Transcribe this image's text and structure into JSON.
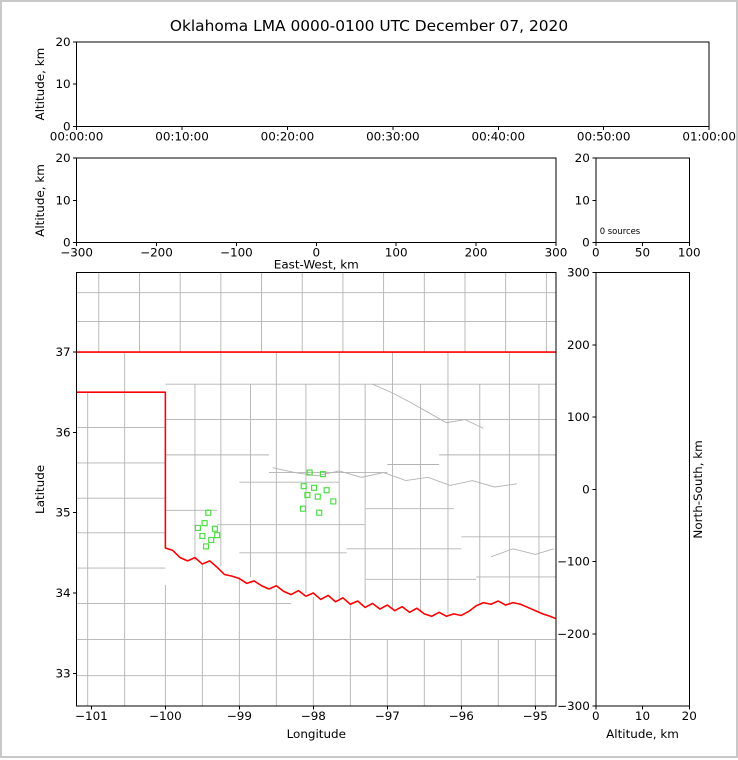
{
  "title": "Oklahoma LMA 0000-0100 UTC December 07, 2020",
  "colors": {
    "background": "#ffffff",
    "frame_border": "#c8c8c8",
    "axis": "#000000",
    "county_line": "#b3b3b3",
    "state_border": "#ff0000",
    "station_stroke": "#4fdd44",
    "text": "#000000"
  },
  "chart_data": [
    {
      "type": "scatter",
      "name": "time-height",
      "title": "",
      "xlabel": "",
      "ylabel": "Altitude, km",
      "xlim": [
        0,
        3600
      ],
      "xticks": [
        0,
        600,
        1200,
        1800,
        2400,
        3000,
        3600
      ],
      "xtick_labels": [
        "00:00:00",
        "00:10:00",
        "00:20:00",
        "00:30:00",
        "00:40:00",
        "00:50:00",
        "01:00:00"
      ],
      "ylim": [
        0,
        20
      ],
      "yticks": [
        0,
        10,
        20
      ],
      "points": []
    },
    {
      "type": "scatter",
      "name": "ew-height",
      "xlabel": "East-West, km",
      "ylabel": "Altitude, km",
      "xlim": [
        -300,
        300
      ],
      "xticks": [
        -300,
        -200,
        -100,
        0,
        100,
        200,
        300
      ],
      "ylim": [
        0,
        20
      ],
      "yticks": [
        0,
        10,
        20
      ],
      "points": []
    },
    {
      "type": "histogram",
      "name": "source-histogram",
      "annotation": "0 sources",
      "xlim": [
        0,
        100
      ],
      "xticks": [
        0,
        50,
        100
      ],
      "ylim": [
        0,
        20
      ],
      "yticks": [
        0,
        10,
        20
      ],
      "values": []
    },
    {
      "type": "map-scatter",
      "name": "plan-view",
      "xlabel": "Longitude",
      "ylabel": "Latitude",
      "xlim": [
        -101.2,
        -94.72
      ],
      "xticks": [
        -101,
        -100,
        -99,
        -98,
        -97,
        -96,
        -95
      ],
      "ylim": [
        32.59,
        37.99
      ],
      "yticks": [
        33,
        34,
        35,
        36,
        37
      ],
      "points": [],
      "stations": [
        [
          -98.05,
          35.5
        ],
        [
          -97.87,
          35.48
        ],
        [
          -98.13,
          35.33
        ],
        [
          -97.99,
          35.31
        ],
        [
          -97.82,
          35.28
        ],
        [
          -98.08,
          35.22
        ],
        [
          -97.94,
          35.2
        ],
        [
          -97.73,
          35.14
        ],
        [
          -98.14,
          35.05
        ],
        [
          -97.92,
          35.0
        ],
        [
          -99.42,
          35.0
        ],
        [
          -99.47,
          34.87
        ],
        [
          -99.56,
          34.81
        ],
        [
          -99.33,
          34.8
        ],
        [
          -99.5,
          34.71
        ],
        [
          -99.3,
          34.72
        ],
        [
          -99.38,
          34.66
        ],
        [
          -99.45,
          34.58
        ]
      ]
    },
    {
      "type": "scatter",
      "name": "height-ns",
      "xlabel": "Altitude, km",
      "ylabel": "North-South, km",
      "ylabel_side": "right",
      "xlim": [
        0,
        20
      ],
      "xticks": [
        0,
        10,
        20
      ],
      "ylim": [
        -300,
        300
      ],
      "yticks": [
        -300,
        -200,
        -100,
        0,
        100,
        200,
        300
      ],
      "points": []
    }
  ],
  "map": {
    "state_outline": [
      [
        [
          -101.2,
          37.0
        ],
        [
          -94.72,
          37.0
        ]
      ],
      [
        [
          -101.2,
          36.5
        ],
        [
          -100.0,
          36.5
        ],
        [
          -100.0,
          34.56
        ],
        [
          -99.9,
          34.53
        ],
        [
          -99.8,
          34.44
        ],
        [
          -99.7,
          34.4
        ],
        [
          -99.6,
          34.44
        ],
        [
          -99.5,
          34.36
        ],
        [
          -99.4,
          34.4
        ],
        [
          -99.3,
          34.32
        ],
        [
          -99.2,
          34.23
        ],
        [
          -99.1,
          34.21
        ],
        [
          -99.0,
          34.18
        ],
        [
          -98.9,
          34.12
        ],
        [
          -98.8,
          34.15
        ],
        [
          -98.7,
          34.09
        ],
        [
          -98.6,
          34.05
        ],
        [
          -98.5,
          34.09
        ],
        [
          -98.4,
          34.02
        ],
        [
          -98.3,
          33.98
        ],
        [
          -98.2,
          34.03
        ],
        [
          -98.1,
          33.96
        ],
        [
          -98.0,
          34.0
        ],
        [
          -97.9,
          33.92
        ],
        [
          -97.8,
          33.97
        ],
        [
          -97.7,
          33.89
        ],
        [
          -97.6,
          33.94
        ],
        [
          -97.5,
          33.86
        ],
        [
          -97.4,
          33.9
        ],
        [
          -97.3,
          33.82
        ],
        [
          -97.2,
          33.87
        ],
        [
          -97.1,
          33.8
        ],
        [
          -97.0,
          33.85
        ],
        [
          -96.9,
          33.78
        ],
        [
          -96.8,
          33.83
        ],
        [
          -96.7,
          33.76
        ],
        [
          -96.6,
          33.81
        ],
        [
          -96.5,
          33.74
        ],
        [
          -96.4,
          33.71
        ],
        [
          -96.3,
          33.76
        ],
        [
          -96.2,
          33.71
        ],
        [
          -96.1,
          33.74
        ],
        [
          -96.0,
          33.72
        ],
        [
          -95.9,
          33.77
        ],
        [
          -95.8,
          33.84
        ],
        [
          -95.7,
          33.88
        ],
        [
          -95.6,
          33.86
        ],
        [
          -95.5,
          33.9
        ],
        [
          -95.4,
          33.85
        ],
        [
          -95.3,
          33.88
        ],
        [
          -95.2,
          33.86
        ],
        [
          -95.1,
          33.82
        ],
        [
          -95.0,
          33.78
        ],
        [
          -94.9,
          33.74
        ],
        [
          -94.8,
          33.71
        ],
        [
          -94.72,
          33.68
        ]
      ]
    ],
    "counties": {
      "h": [
        [
          37.74,
          -101.2,
          -94.72
        ],
        [
          37.38,
          -101.2,
          -94.72
        ],
        [
          36.6,
          -100.0,
          -94.72
        ],
        [
          36.16,
          -100.0,
          -94.72
        ],
        [
          35.72,
          -100.0,
          -98.6
        ],
        [
          35.72,
          -96.3,
          -94.72
        ],
        [
          35.5,
          -98.6,
          -97.0
        ],
        [
          35.6,
          -97.0,
          -96.3
        ],
        [
          35.38,
          -99.0,
          -97.65
        ],
        [
          35.03,
          -100.0,
          -99.3
        ],
        [
          34.85,
          -99.3,
          -97.3
        ],
        [
          35.05,
          -97.3,
          -96.1
        ],
        [
          34.5,
          -99.0,
          -97.55
        ],
        [
          34.55,
          -97.55,
          -96.0
        ],
        [
          34.7,
          -96.0,
          -94.72
        ],
        [
          34.17,
          -97.3,
          -95.8
        ],
        [
          34.2,
          -95.8,
          -94.72
        ],
        [
          36.06,
          -101.2,
          -100.0
        ],
        [
          35.62,
          -101.2,
          -100.0
        ],
        [
          35.18,
          -101.2,
          -100.0
        ],
        [
          34.75,
          -101.2,
          -100.0
        ],
        [
          34.31,
          -101.2,
          -100.0
        ],
        [
          33.87,
          -101.2,
          -100.0
        ],
        [
          33.87,
          -100.0,
          -98.3
        ],
        [
          33.42,
          -101.2,
          -94.72
        ],
        [
          32.97,
          -101.2,
          -94.72
        ]
      ],
      "v": [
        [
          -100.9,
          37.0,
          37.99
        ],
        [
          -100.35,
          37.0,
          37.99
        ],
        [
          -99.8,
          37.0,
          37.99
        ],
        [
          -99.25,
          37.0,
          37.99
        ],
        [
          -98.7,
          37.0,
          37.99
        ],
        [
          -98.15,
          37.0,
          37.99
        ],
        [
          -97.6,
          37.0,
          37.99
        ],
        [
          -97.05,
          37.0,
          37.99
        ],
        [
          -96.5,
          37.0,
          37.99
        ],
        [
          -95.95,
          37.0,
          37.99
        ],
        [
          -95.4,
          37.0,
          37.99
        ],
        [
          -94.85,
          37.0,
          37.99
        ],
        [
          -100.55,
          32.59,
          37.0
        ],
        [
          -101.05,
          32.59,
          36.5
        ],
        [
          -99.6,
          34.4,
          36.6
        ],
        [
          -99.25,
          34.33,
          37.0
        ],
        [
          -98.85,
          34.2,
          36.6
        ],
        [
          -98.5,
          34.1,
          37.0
        ],
        [
          -98.1,
          34.0,
          36.6
        ],
        [
          -97.65,
          33.9,
          37.0
        ],
        [
          -97.3,
          33.88,
          36.6
        ],
        [
          -96.93,
          33.8,
          37.0
        ],
        [
          -96.55,
          33.76,
          36.6
        ],
        [
          -96.18,
          33.73,
          37.0
        ],
        [
          -95.75,
          33.87,
          36.6
        ],
        [
          -95.35,
          33.86,
          37.0
        ],
        [
          -94.95,
          33.75,
          36.6
        ],
        [
          -100.0,
          32.59,
          34.1
        ],
        [
          -99.5,
          32.59,
          34.35
        ],
        [
          -99.0,
          32.59,
          34.2
        ],
        [
          -98.5,
          32.59,
          34.05
        ],
        [
          -98.0,
          32.59,
          33.95
        ],
        [
          -97.5,
          32.59,
          33.85
        ],
        [
          -97.0,
          32.59,
          33.42
        ],
        [
          -96.5,
          32.59,
          33.42
        ],
        [
          -96.0,
          32.59,
          33.42
        ],
        [
          -95.5,
          32.59,
          33.42
        ],
        [
          -95.0,
          32.59,
          33.42
        ]
      ],
      "d": [
        [
          [
            -98.55,
            35.56
          ],
          [
            -98.25,
            35.5
          ],
          [
            -97.95,
            35.46
          ],
          [
            -97.65,
            35.52
          ],
          [
            -97.35,
            35.44
          ],
          [
            -97.05,
            35.5
          ],
          [
            -96.75,
            35.4
          ],
          [
            -96.45,
            35.44
          ],
          [
            -96.15,
            35.34
          ],
          [
            -95.85,
            35.4
          ],
          [
            -95.55,
            35.32
          ],
          [
            -95.25,
            35.36
          ]
        ],
        [
          [
            -97.2,
            36.6
          ],
          [
            -96.95,
            36.5
          ],
          [
            -96.7,
            36.38
          ],
          [
            -96.45,
            36.25
          ],
          [
            -96.2,
            36.12
          ],
          [
            -95.95,
            36.16
          ],
          [
            -95.7,
            36.05
          ]
        ],
        [
          [
            -95.6,
            34.45
          ],
          [
            -95.3,
            34.55
          ],
          [
            -95.0,
            34.48
          ],
          [
            -94.75,
            34.55
          ]
        ]
      ]
    }
  }
}
